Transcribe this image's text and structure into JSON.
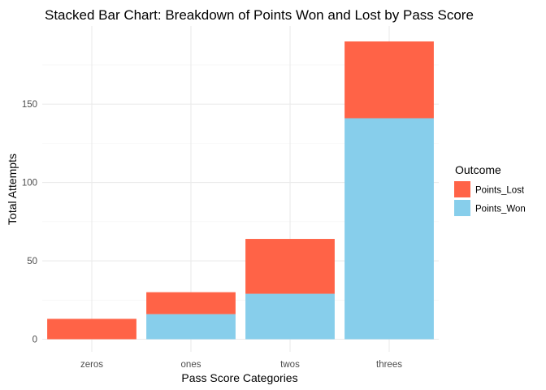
{
  "chart_data": {
    "type": "bar",
    "stacked": true,
    "title": "Stacked Bar Chart: Breakdown of Points Won and Lost by Pass Score",
    "xlabel": "Pass Score Categories",
    "ylabel": "Total Attempts",
    "categories": [
      "zeros",
      "ones",
      "twos",
      "threes"
    ],
    "series": [
      {
        "name": "Points_Won",
        "values": [
          0,
          16,
          29,
          141
        ],
        "color": "#87CEEB"
      },
      {
        "name": "Points_Lost",
        "values": [
          13,
          14,
          35,
          49
        ],
        "color": "#FF6347"
      }
    ],
    "ylim": [
      0,
      190
    ],
    "yticks": [
      0,
      50,
      100,
      150
    ],
    "grid": true,
    "legend": {
      "title": "Outcome",
      "placement": "right",
      "order": [
        "Points_Lost",
        "Points_Won"
      ]
    }
  }
}
